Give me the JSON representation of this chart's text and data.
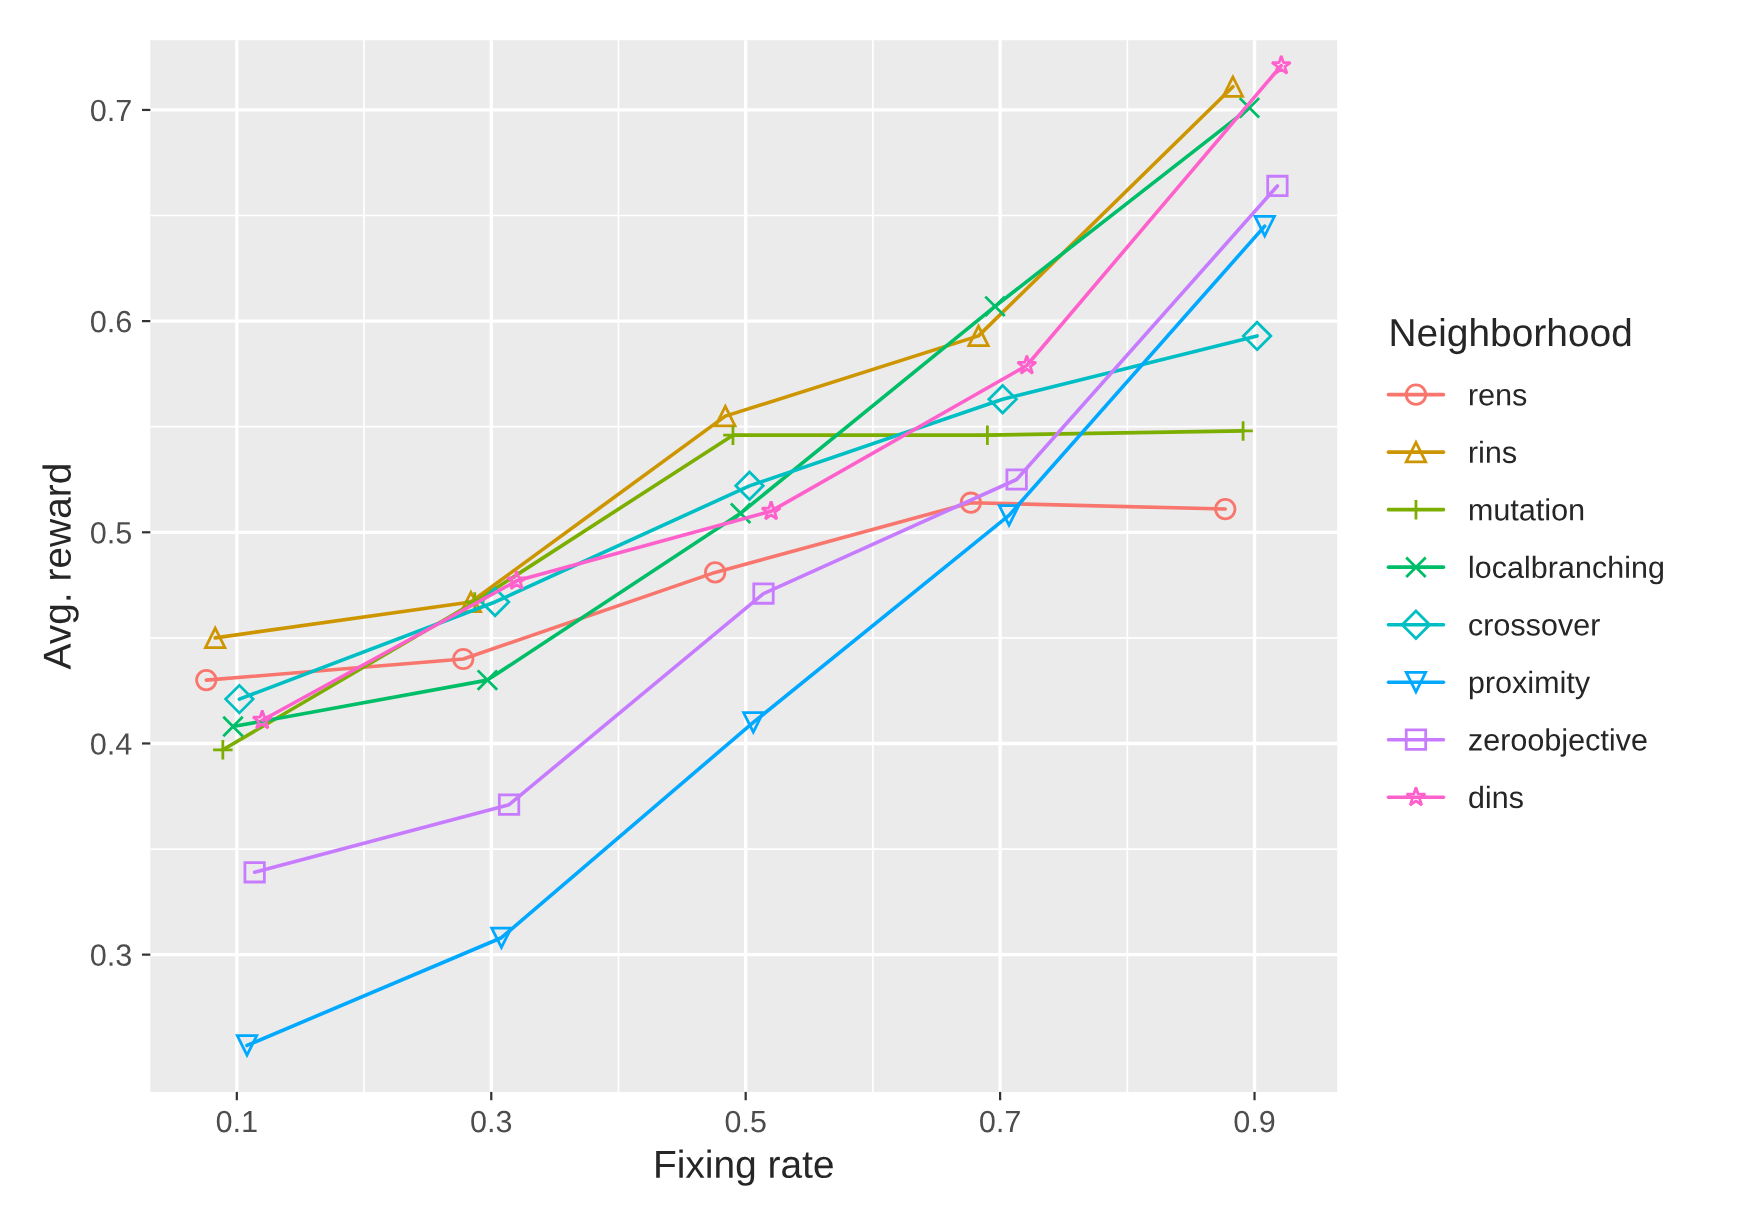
{
  "chart_data": {
    "type": "line",
    "xlabel": "Fixing rate",
    "ylabel": "Avg. reward",
    "legend_title": "Neighborhood",
    "legend": "right",
    "grid": true,
    "xlim": [
      0.032,
      0.965
    ],
    "ylim": [
      0.235,
      0.733
    ],
    "xticks": [
      0.1,
      0.3,
      0.5,
      0.7,
      0.9
    ],
    "yticks": [
      0.3,
      0.4,
      0.5,
      0.6,
      0.7
    ],
    "series": [
      {
        "name": "rens",
        "color": "#F8766D",
        "marker": "circle",
        "x": [
          0.076,
          0.278,
          0.476,
          0.677,
          0.877
        ],
        "values": [
          0.43,
          0.44,
          0.481,
          0.514,
          0.511
        ]
      },
      {
        "name": "rins",
        "color": "#CD9600",
        "marker": "triangle",
        "x": [
          0.083,
          0.284,
          0.484,
          0.683,
          0.883
        ],
        "values": [
          0.45,
          0.467,
          0.555,
          0.593,
          0.711
        ]
      },
      {
        "name": "mutation",
        "color": "#7CAE00",
        "marker": "cross",
        "x": [
          0.089,
          0.287,
          0.49,
          0.69,
          0.891
        ],
        "values": [
          0.397,
          0.467,
          0.546,
          0.546,
          0.548
        ]
      },
      {
        "name": "localbranching",
        "color": "#00BE67",
        "marker": "x",
        "x": [
          0.097,
          0.297,
          0.496,
          0.696,
          0.896
        ],
        "values": [
          0.408,
          0.43,
          0.509,
          0.607,
          0.701
        ]
      },
      {
        "name": "crossover",
        "color": "#00BFC4",
        "marker": "diamond",
        "x": [
          0.102,
          0.303,
          0.503,
          0.702,
          0.902
        ],
        "values": [
          0.421,
          0.467,
          0.522,
          0.563,
          0.593
        ]
      },
      {
        "name": "proximity",
        "color": "#00A9FF",
        "marker": "triangle_down",
        "x": [
          0.108,
          0.308,
          0.506,
          0.707,
          0.908
        ],
        "values": [
          0.257,
          0.308,
          0.41,
          0.508,
          0.645
        ]
      },
      {
        "name": "zeroobjective",
        "color": "#C77CFF",
        "marker": "square",
        "x": [
          0.114,
          0.314,
          0.514,
          0.713,
          0.918
        ],
        "values": [
          0.339,
          0.371,
          0.471,
          0.525,
          0.664
        ]
      },
      {
        "name": "dins",
        "color": "#FF61CC",
        "marker": "star",
        "x": [
          0.12,
          0.32,
          0.52,
          0.721,
          0.921
        ],
        "values": [
          0.411,
          0.477,
          0.51,
          0.579,
          0.721
        ]
      }
    ]
  }
}
